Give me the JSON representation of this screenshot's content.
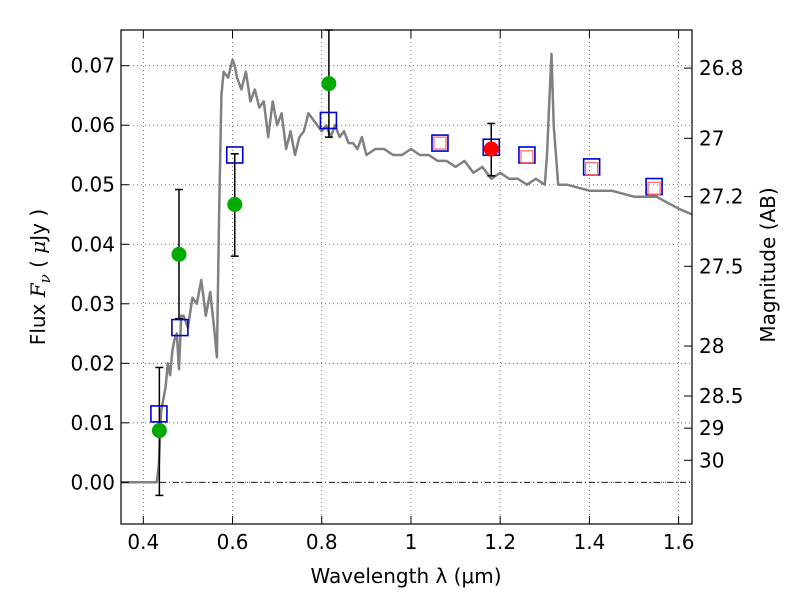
{
  "chart_data": {
    "type": "scatter",
    "title": "",
    "xlabel": "Wavelength  λ (μm)",
    "ylabel": "Flux  Fν  ( μJy )",
    "ylabel_parts": {
      "a": "Flux ",
      "b": "F",
      "c": "ν",
      "d": "  ( ",
      "e": "μ",
      "f": "Jy )"
    },
    "y2label": "Magnitude (AB)",
    "xlim": [
      0.35,
      1.63
    ],
    "ylim": [
      -0.007,
      0.076
    ],
    "grid": true,
    "xticks": [
      {
        "value": 0.4,
        "label": "0.4"
      },
      {
        "value": 0.6,
        "label": "0.6"
      },
      {
        "value": 0.8,
        "label": "0.8"
      },
      {
        "value": 1.0,
        "label": "1"
      },
      {
        "value": 1.2,
        "label": "1.2"
      },
      {
        "value": 1.4,
        "label": "1.4"
      },
      {
        "value": 1.6,
        "label": "1.6"
      }
    ],
    "yticks": [
      {
        "value": 0.0,
        "label": "0.00"
      },
      {
        "value": 0.01,
        "label": "0.01"
      },
      {
        "value": 0.02,
        "label": "0.02"
      },
      {
        "value": 0.03,
        "label": "0.03"
      },
      {
        "value": 0.04,
        "label": "0.04"
      },
      {
        "value": 0.05,
        "label": "0.05"
      },
      {
        "value": 0.06,
        "label": "0.06"
      },
      {
        "value": 0.07,
        "label": "0.07"
      }
    ],
    "y2ticks": [
      {
        "flux": 0.0696,
        "label": "26.8"
      },
      {
        "flux": 0.0578,
        "label": "27"
      },
      {
        "flux": 0.048,
        "label": "27.2"
      },
      {
        "flux": 0.0363,
        "label": "27.5"
      },
      {
        "flux": 0.0229,
        "label": "28"
      },
      {
        "flux": 0.0145,
        "label": "28.5"
      },
      {
        "flux": 0.0091,
        "label": "29"
      },
      {
        "flux": 0.0037,
        "label": "30"
      }
    ],
    "colors": {
      "model": "#808080",
      "model_square": "#0000cc",
      "red_square": "#ff6666",
      "green_point": "#00aa00",
      "red_point": "#ff0000",
      "errorbar": "#000000",
      "grid": "#555555"
    },
    "series": [
      {
        "kind": "line",
        "x": [
          0.35,
          0.43,
          0.435,
          0.44,
          0.445,
          0.45,
          0.455,
          0.46,
          0.465,
          0.47,
          0.475,
          0.48,
          0.485,
          0.49,
          0.5,
          0.51,
          0.52,
          0.53,
          0.54,
          0.55,
          0.56,
          0.565,
          0.57,
          0.575,
          0.58,
          0.59,
          0.6,
          0.605,
          0.61,
          0.62,
          0.63,
          0.64,
          0.65,
          0.66,
          0.67,
          0.68,
          0.69,
          0.7,
          0.71,
          0.72,
          0.73,
          0.74,
          0.75,
          0.76,
          0.77,
          0.78,
          0.79,
          0.8,
          0.81,
          0.82,
          0.83,
          0.84,
          0.85,
          0.86,
          0.87,
          0.88,
          0.89,
          0.9,
          0.92,
          0.94,
          0.96,
          0.98,
          1.0,
          1.02,
          1.04,
          1.06,
          1.08,
          1.1,
          1.12,
          1.14,
          1.16,
          1.18,
          1.2,
          1.22,
          1.24,
          1.26,
          1.28,
          1.3,
          1.305,
          1.31,
          1.315,
          1.32,
          1.33,
          1.35,
          1.4,
          1.45,
          1.5,
          1.55,
          1.6,
          1.63
        ],
        "y": [
          0.0,
          0.0,
          0.003,
          0.012,
          0.014,
          0.016,
          0.02,
          0.018,
          0.022,
          0.024,
          0.025,
          0.019,
          0.028,
          0.028,
          0.026,
          0.031,
          0.03,
          0.034,
          0.028,
          0.032,
          0.025,
          0.021,
          0.045,
          0.065,
          0.069,
          0.068,
          0.071,
          0.07,
          0.068,
          0.066,
          0.069,
          0.064,
          0.066,
          0.063,
          0.064,
          0.058,
          0.064,
          0.06,
          0.062,
          0.056,
          0.059,
          0.055,
          0.058,
          0.059,
          0.062,
          0.061,
          0.06,
          0.059,
          0.06,
          0.058,
          0.06,
          0.058,
          0.059,
          0.057,
          0.057,
          0.056,
          0.058,
          0.055,
          0.056,
          0.056,
          0.055,
          0.055,
          0.056,
          0.055,
          0.055,
          0.054,
          0.054,
          0.053,
          0.054,
          0.052,
          0.053,
          0.051,
          0.052,
          0.051,
          0.051,
          0.05,
          0.051,
          0.05,
          0.055,
          0.064,
          0.072,
          0.06,
          0.05,
          0.05,
          0.049,
          0.049,
          0.048,
          0.048,
          0.046,
          0.045
        ]
      },
      {
        "kind": "blue_square",
        "x": [
          0.435,
          0.482,
          0.605,
          0.815,
          1.065,
          1.18,
          1.26,
          1.405,
          1.545
        ],
        "y": [
          0.0115,
          0.026,
          0.055,
          0.0608,
          0.057,
          0.0563,
          0.055,
          0.053,
          0.0497
        ]
      },
      {
        "kind": "red_square",
        "x": [
          1.065,
          1.26,
          1.405,
          1.545
        ],
        "y": [
          0.057,
          0.0547,
          0.0527,
          0.0494
        ]
      },
      {
        "kind": "green_point",
        "x": [
          0.436,
          0.48,
          0.605,
          0.816
        ],
        "y": [
          0.0087,
          0.0383,
          0.0467,
          0.067
        ]
      },
      {
        "kind": "red_point",
        "x": [
          1.18
        ],
        "y": [
          0.056
        ]
      },
      {
        "kind": "errorbar",
        "x": [
          0.436,
          0.48,
          0.605,
          0.816,
          1.18
        ],
        "ylow": [
          -0.0022,
          0.0275,
          0.038,
          0.058,
          0.0515
        ],
        "yhigh": [
          0.0193,
          0.0492,
          0.0552,
          0.076,
          0.0603
        ]
      }
    ]
  }
}
